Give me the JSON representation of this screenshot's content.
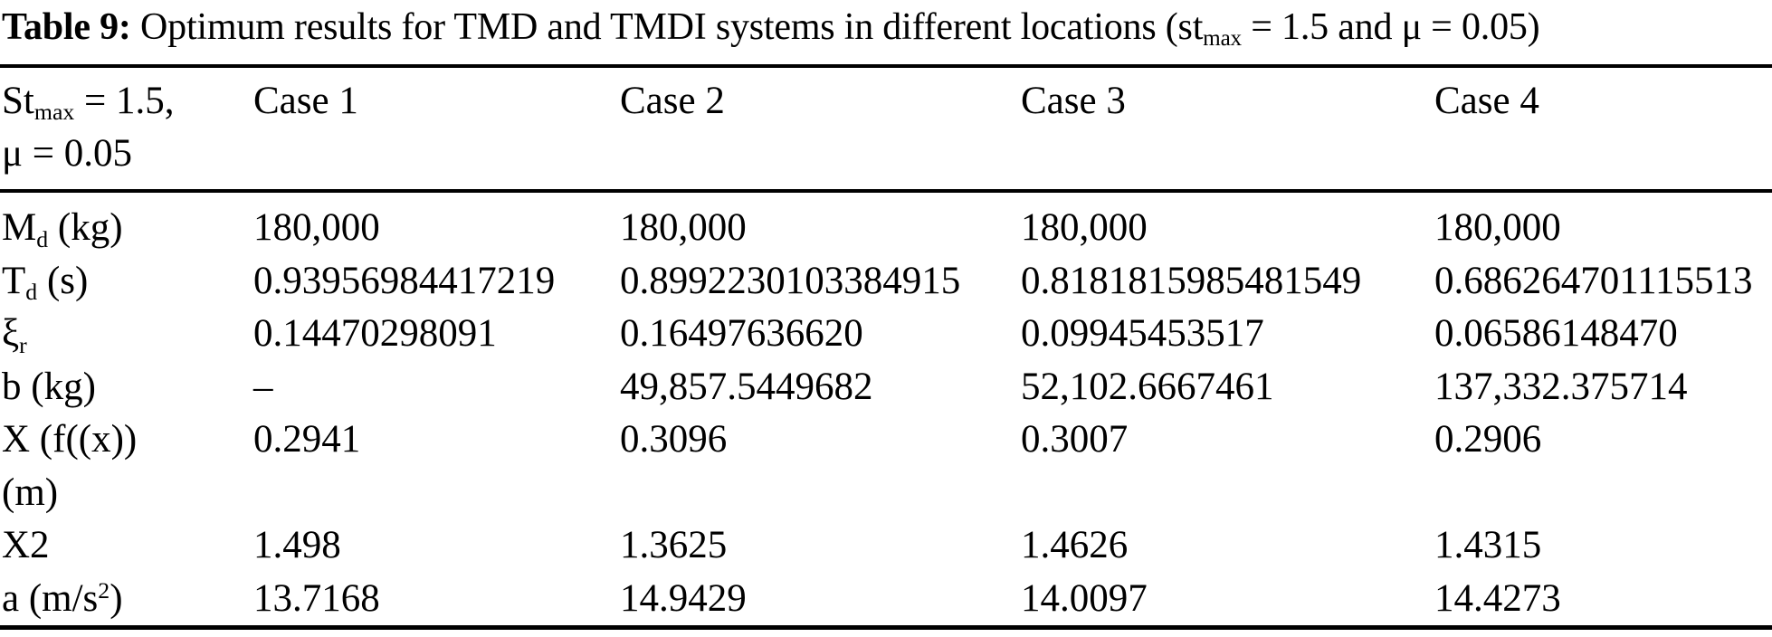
{
  "title": {
    "label": "Table 9:",
    "pre": " Optimum results for TMD and TMDI systems in different locations (st",
    "sub": "max",
    "post": " = 1.5 and μ = 0.05)"
  },
  "table": {
    "header": {
      "corner": {
        "pre": "St",
        "sub": "max",
        "mid": " = 1.5,",
        "line2": "μ = 0.05"
      },
      "columns": [
        "Case 1",
        "Case 2",
        "Case 3",
        "Case 4"
      ]
    },
    "rows": [
      {
        "label": {
          "pre": "M",
          "sub": "d",
          "mid": " (kg)"
        },
        "values": [
          "180,000",
          "180,000",
          "180,000",
          "180,000"
        ]
      },
      {
        "label": {
          "pre": "T",
          "sub": "d",
          "mid": " (s)"
        },
        "values": [
          "0.93956984417219",
          "0.8992230103384915",
          "0.8181815985481549",
          "0.686264701115513"
        ]
      },
      {
        "label": {
          "pre": "ξ",
          "sub": "r"
        },
        "values": [
          "0.14470298091",
          "0.16497636620",
          "0.09945453517",
          "0.06586148470"
        ]
      },
      {
        "label": {
          "pre": "b (kg)"
        },
        "values": [
          "–",
          "49,857.5449682",
          "52,102.6667461",
          "137,332.375714"
        ]
      },
      {
        "label": {
          "pre": "X (f((x))",
          "line2": "(m)"
        },
        "values": [
          "0.2941",
          "0.3096",
          "0.3007",
          "0.2906"
        ]
      },
      {
        "label": {
          "pre": "X2"
        },
        "values": [
          "1.498",
          "1.3625",
          "1.4626",
          "1.4315"
        ]
      },
      {
        "label": {
          "pre": "a (m/s",
          "sup": "2",
          "post": ")"
        },
        "values": [
          "13.7168",
          "14.9429",
          "14.0097",
          "14.4273"
        ]
      }
    ]
  }
}
